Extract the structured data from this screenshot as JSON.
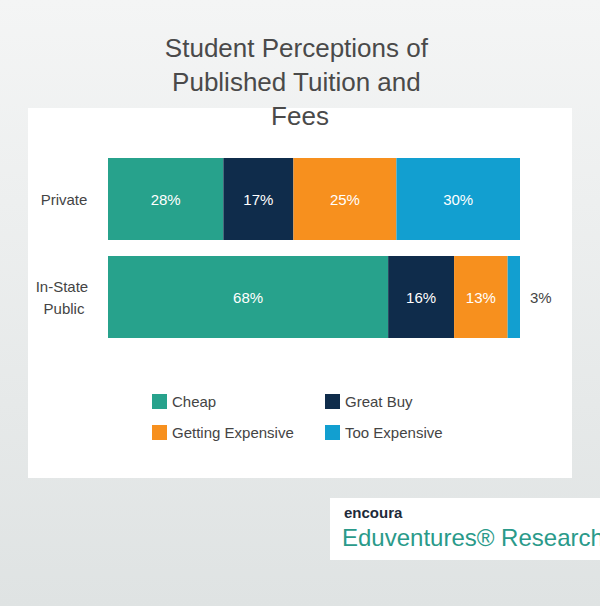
{
  "chart_data": {
    "type": "bar",
    "title": "Student Perceptions of Published Tuition and Fees",
    "orientation": "horizontal",
    "stacked": true,
    "data_labels": true,
    "tick_labels": "y",
    "grid": false,
    "legend": "bottom",
    "categories": [
      "Private",
      "In-State Public"
    ],
    "xlim": [
      0,
      100
    ],
    "series": [
      {
        "name": "Cheap",
        "color": "#27a28c",
        "values": [
          28,
          68
        ],
        "value_labels": [
          "28%",
          "68%"
        ]
      },
      {
        "name": "Great Buy",
        "color": "#0f2c4b",
        "values": [
          17,
          16
        ],
        "value_labels": [
          "17%",
          "16%"
        ]
      },
      {
        "name": "Getting Expensive",
        "color": "#f7901e",
        "values": [
          25,
          13
        ],
        "value_labels": [
          "25%",
          "13%"
        ]
      },
      {
        "name": "Too Expensive",
        "color": "#129fd0",
        "values": [
          30,
          3
        ],
        "value_labels": [
          "30%",
          "3%"
        ]
      }
    ],
    "annotations": [
      "encoura",
      "Eduventures® Research"
    ]
  }
}
